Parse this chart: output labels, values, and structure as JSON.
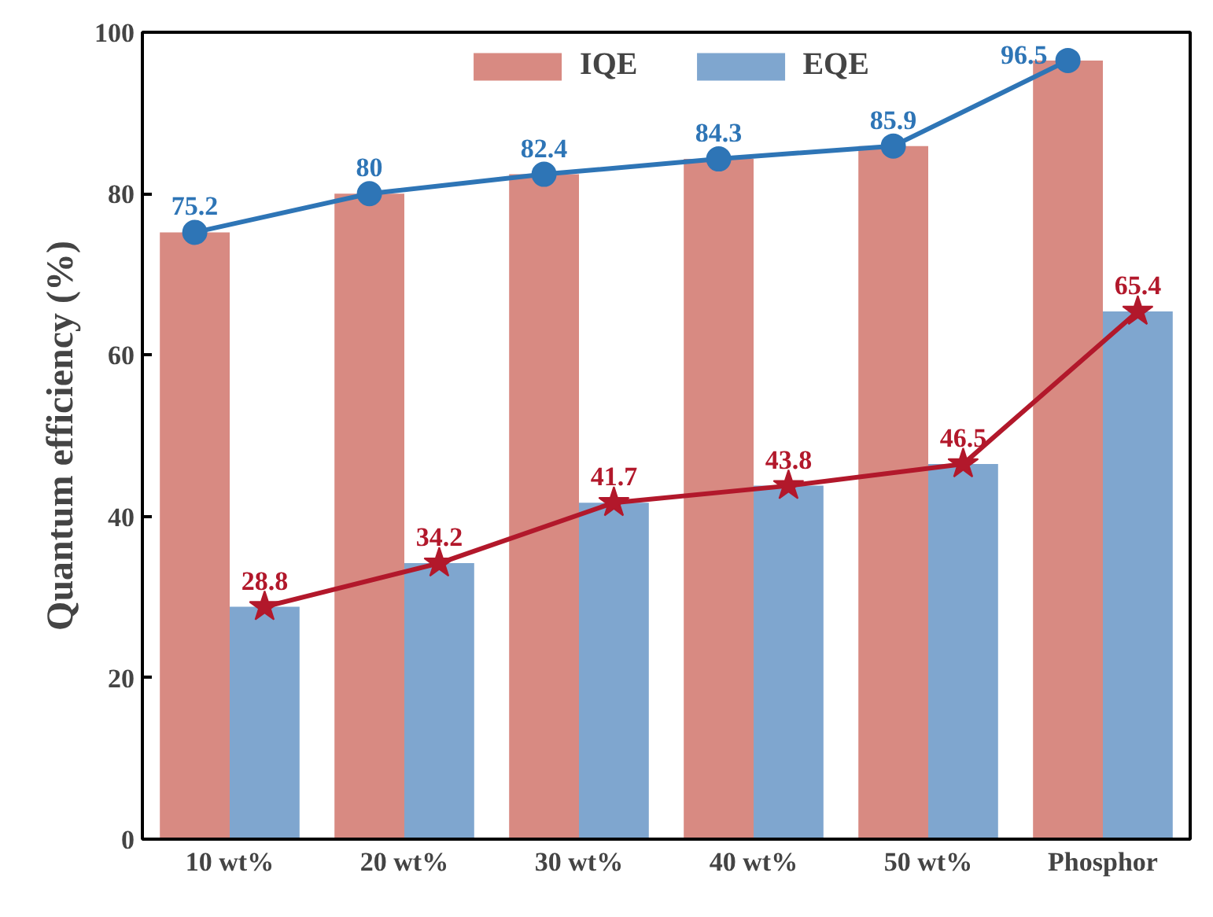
{
  "chart_data": {
    "type": "bar",
    "ylabel": "Quantum efficiency (%)",
    "categories": [
      "10 wt%",
      "20 wt%",
      "30 wt%",
      "40 wt%",
      "50 wt%",
      "Phosphor"
    ],
    "series": [
      {
        "name": "IQE",
        "color": "#d88a82",
        "values": [
          75.2,
          80,
          82.4,
          84.3,
          85.9,
          96.5
        ]
      },
      {
        "name": "EQE",
        "color": "#7fa6cf",
        "values": [
          28.8,
          34.2,
          41.7,
          43.8,
          46.5,
          65.4
        ]
      },
      {
        "type": "line",
        "color": "#2e75b6",
        "marker": "circle",
        "values": [
          75.2,
          80,
          82.4,
          84.3,
          85.9,
          96.5
        ],
        "value_labels": [
          "75.2",
          "80",
          "82.4",
          "84.3",
          "85.9",
          "96.5"
        ]
      },
      {
        "type": "line",
        "color": "#b2182b",
        "marker": "star",
        "values": [
          28.8,
          34.2,
          41.7,
          43.8,
          46.5,
          65.4
        ],
        "value_labels": [
          "28.8",
          "34.2",
          "41.7",
          "43.8",
          "46.5",
          "65.4"
        ]
      }
    ],
    "ylim": [
      0,
      100
    ],
    "yticks": [
      0,
      20,
      40,
      60,
      80,
      100
    ],
    "grid": false,
    "legend": "top"
  }
}
